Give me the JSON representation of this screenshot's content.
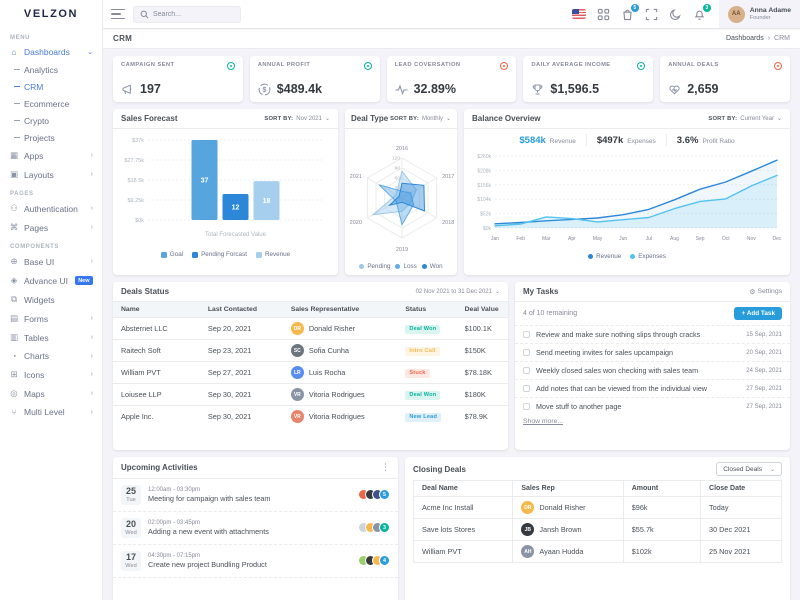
{
  "brand": {
    "logo": "VELZON"
  },
  "colors": {
    "primary": "#487ad8",
    "info": "#299cdb",
    "success": "#0ab39c",
    "warning": "#f7b84b",
    "danger": "#f06548"
  },
  "header": {
    "search_placeholder": "Search...",
    "cart_badge": "5",
    "cart_badge_color": "#299cdb",
    "notification_badge": "3",
    "notification_badge_color": "#0ab39c",
    "user": {
      "name": "Anna Adame",
      "role": "Founder"
    }
  },
  "page": {
    "title": "CRM",
    "breadcrumb_parent": "Dashboards",
    "breadcrumb_sep": "›",
    "breadcrumb_current": "CRM"
  },
  "sidebar": {
    "menu_label": "MENU",
    "pages_label": "PAGES",
    "components_label": "COMPONENTS",
    "dashboards_label": "Dashboards",
    "dashboard_children": [
      "Analytics",
      "CRM",
      "Ecommerce",
      "Crypto",
      "Projects"
    ],
    "apps_label": "Apps",
    "layouts_label": "Layouts",
    "pages_items": [
      "Authentication",
      "Pages"
    ],
    "components_items": [
      "Base UI",
      "Advance UI",
      "Widgets",
      "Forms",
      "Tables",
      "Charts",
      "Icons",
      "Maps",
      "Multi Level"
    ],
    "new_badge": "New"
  },
  "stats": [
    {
      "label": "CAMPAIGN SENT",
      "value": "197",
      "status_color": "#0ab39c"
    },
    {
      "label": "ANNUAL PROFIT",
      "value": "$489.4k",
      "status_color": "#0ab39c"
    },
    {
      "label": "LEAD COVERSATION",
      "value": "32.89%",
      "status_color": "#f06548"
    },
    {
      "label": "DAILY AVERAGE INCOME",
      "value": "$1,596.5",
      "status_color": "#0ab39c"
    },
    {
      "label": "ANNUAL DEALS",
      "value": "2,659",
      "status_color": "#f06548"
    }
  ],
  "panels": {
    "sales_forecast": {
      "sort_label": "SORT BY:",
      "sort_value": "Nov 2021"
    },
    "deal_type": {
      "sort_label": "SORT BY:",
      "sort_value": "Monthly"
    },
    "balance_overview": {
      "sort_label": "SORT BY:",
      "sort_value": "Current Year",
      "stats": [
        {
          "value": "$584k",
          "label": "Revenue",
          "value_color": "#299cdb"
        },
        {
          "value": "$497k",
          "label": "Expenses",
          "value_color": "#343a40"
        },
        {
          "value": "3.6%",
          "label": "Profit Ratio",
          "value_color": "#343a40"
        }
      ]
    }
  },
  "chart_data": [
    {
      "id": "sales_forecast",
      "type": "bar",
      "title": "Sales Forecast",
      "categories": [
        "Goal",
        "Pending Forcast",
        "Revenue"
      ],
      "values": [
        37,
        12,
        18
      ],
      "ymax": 37,
      "bar_colors": [
        "#57a5de",
        "#2c87d8",
        "#a6cfee"
      ],
      "y_ticks": [
        "$37k",
        "$27.75k",
        "$18.5k",
        "$9.25k",
        "$0k"
      ],
      "xlabel": "Total Forecasted Value",
      "legend": [
        "Goal",
        "Pending Forcast",
        "Revenue"
      ]
    },
    {
      "id": "deal_type",
      "type": "radar",
      "title": "Deal Type",
      "categories": [
        "2016",
        "2017",
        "2018",
        "2019",
        "2020",
        "2021"
      ],
      "tick_labels": [
        "0",
        "30",
        "60",
        "90",
        "120"
      ],
      "rmax": 120,
      "series": [
        {
          "name": "Pending",
          "color": "#9cc7ec",
          "values": [
            80,
            50,
            30,
            40,
            100,
            20
          ]
        },
        {
          "name": "Loss",
          "color": "#5fabe5",
          "values": [
            20,
            30,
            40,
            80,
            20,
            80
          ]
        },
        {
          "name": "Won",
          "color": "#2c87d8",
          "values": [
            44,
            76,
            78,
            13,
            43,
            10
          ]
        }
      ]
    },
    {
      "id": "balance_overview",
      "type": "area",
      "title": "Balance Overview",
      "x": [
        "Jan",
        "Feb",
        "Mar",
        "Apr",
        "May",
        "Jun",
        "Jul",
        "Aug",
        "Sep",
        "Oct",
        "Nov",
        "Dec"
      ],
      "y_ticks": [
        "$260k",
        "$208k",
        "$156k",
        "$104k",
        "$52k",
        "$0k"
      ],
      "ymax": 260,
      "series": [
        {
          "name": "Revenue",
          "color": "#2c87d8",
          "values": [
            15,
            20,
            26,
            31,
            36,
            48,
            67,
            102,
            140,
            166,
            205,
            245
          ]
        },
        {
          "name": "Expenses",
          "color": "#54c2ee",
          "values": [
            8,
            14,
            40,
            34,
            22,
            30,
            38,
            70,
            96,
            105,
            152,
            190
          ]
        }
      ],
      "legend_position": "bottom",
      "grid": true
    }
  ],
  "deals_status": {
    "title": "Deals Status",
    "date_range": "02 Nov 2021 to 31 Dec 2021",
    "columns": [
      "Name",
      "Last Contacted",
      "Sales Representative",
      "Status",
      "Deal Value"
    ],
    "rows": [
      {
        "name": "Absternet LLC",
        "last_contacted": "Sep 20, 2021",
        "rep": "Donald Risher",
        "status": "Deal Won",
        "status_color": "#0ab39c",
        "value": "$100.1K",
        "avatar_color": "#f7b84b"
      },
      {
        "name": "Raitech Soft",
        "last_contacted": "Sep 23, 2021",
        "rep": "Sofia Cunha",
        "status": "Intro Call",
        "status_color": "#f7b84b",
        "value": "$150K",
        "avatar_color": "#6c757d"
      },
      {
        "name": "William PVT",
        "last_contacted": "Sep 27, 2021",
        "rep": "Luis Rocha",
        "status": "Stuck",
        "status_color": "#f06548",
        "value": "$78.18K",
        "avatar_color": "#5b8def"
      },
      {
        "name": "Loiusee LLP",
        "last_contacted": "Sep 30, 2021",
        "rep": "Vitoria Rodrigues",
        "status": "Deal Won",
        "status_color": "#0ab39c",
        "value": "$180K",
        "avatar_color": "#8a94a6"
      },
      {
        "name": "Apple Inc.",
        "last_contacted": "Sep 30, 2021",
        "rep": "Vitoria Rodrigues",
        "status": "New Lead",
        "status_color": "#299cdb",
        "value": "$78.9K",
        "avatar_color": "#e8836c"
      }
    ]
  },
  "my_tasks": {
    "title": "My Tasks",
    "settings_label": "Settings",
    "remaining": "4 of 10 remaining",
    "add_task_label": "+ Add Task",
    "tasks": [
      {
        "text": "Review and make sure nothing slips through cracks",
        "date": "15 Sep, 2021"
      },
      {
        "text": "Send meeting invites for sales upcampaign",
        "date": "20 Sep, 2021"
      },
      {
        "text": "Weekly closed sales won checking with sales team",
        "date": "24 Sep, 2021"
      },
      {
        "text": "Add notes that can be viewed from the individual view",
        "date": "27 Sep, 2021"
      },
      {
        "text": "Move stuff to another page",
        "date": "27 Sep, 2021"
      }
    ],
    "show_more_label": "Show more..."
  },
  "upcoming_activities": {
    "title": "Upcoming Activities",
    "items": [
      {
        "day": "25",
        "weekday": "Tue",
        "time": "12:00am - 03:30pm",
        "title": "Meeting for campaign with sales team",
        "extra_count": "5",
        "badge_color": "#299cdb",
        "avatar_colors": [
          "#f06548",
          "#343a40",
          "#405189"
        ]
      },
      {
        "day": "20",
        "weekday": "Wed",
        "time": "02:00pm - 03:45pm",
        "title": "Adding a new event with attachments",
        "extra_count": "3",
        "badge_color": "#0ab39c",
        "avatar_colors": [
          "#ced4da",
          "#f7b84b",
          "#8a94a6"
        ]
      },
      {
        "day": "17",
        "weekday": "Wed",
        "time": "04:30pm - 07:15pm",
        "title": "Create new project Bundling Product",
        "extra_count": "4",
        "badge_color": "#299cdb",
        "avatar_colors": [
          "#9ad06b",
          "#343a40",
          "#f7b84b"
        ]
      }
    ]
  },
  "closing_deals": {
    "title": "Closing Deals",
    "filter_value": "Closed Deals",
    "columns": [
      "Deal Name",
      "Sales Rep",
      "Amount",
      "Close Date"
    ],
    "rows": [
      {
        "deal": "Acme Inc Install",
        "rep": "Donald Risher",
        "amount": "$96k",
        "close": "Today",
        "avatar_color": "#f7b84b"
      },
      {
        "deal": "Save lots Stores",
        "rep": "Jansh Brown",
        "amount": "$55.7k",
        "close": "30 Dec 2021",
        "avatar_color": "#343a40"
      },
      {
        "deal": "William PVT",
        "rep": "Ayaan Hudda",
        "amount": "$102k",
        "close": "25 Nov 2021",
        "avatar_color": "#8a94a6"
      }
    ]
  }
}
